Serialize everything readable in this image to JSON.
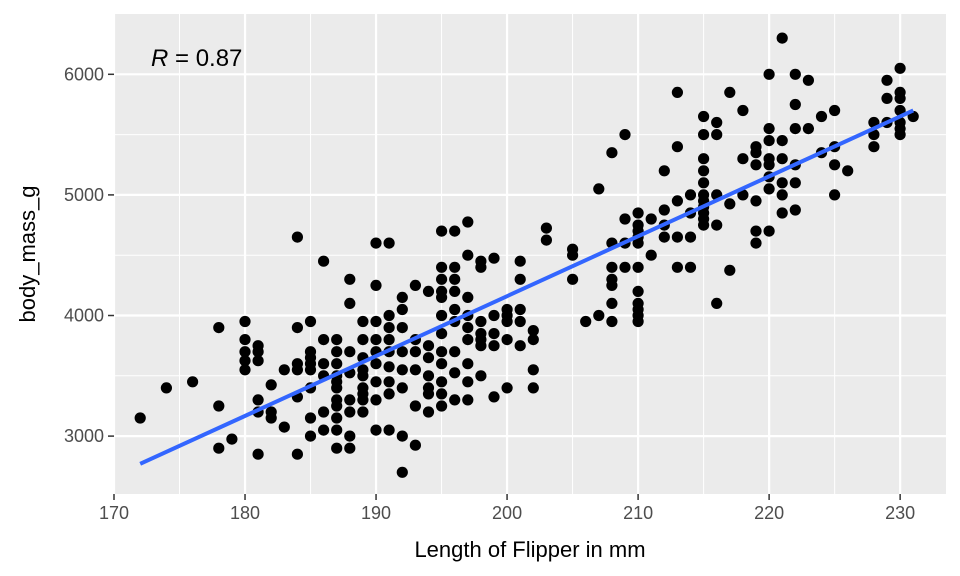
{
  "chart_data": {
    "type": "scatter",
    "title": "",
    "xlabel": "Length of Flipper in mm",
    "ylabel": "body_mass_g",
    "xlim": [
      170,
      233.5
    ],
    "ylim": [
      2520,
      6500
    ],
    "x_ticks": [
      170,
      180,
      190,
      200,
      210,
      220,
      230
    ],
    "y_ticks": [
      3000,
      4000,
      5000,
      6000
    ],
    "grid": true,
    "annotation": {
      "prefix": "R",
      "text": " = 0.87"
    },
    "regression": {
      "x": [
        172,
        231
      ],
      "y": [
        2770,
        5700
      ],
      "color": "#3366FF"
    },
    "point_color": "#000000",
    "background_color": "#EBEBEB",
    "points": [
      [
        172,
        3150
      ],
      [
        174,
        3400
      ],
      [
        176,
        3450
      ],
      [
        178,
        3900
      ],
      [
        178,
        3250
      ],
      [
        178,
        2900
      ],
      [
        179,
        2975
      ],
      [
        180,
        3950
      ],
      [
        180,
        3800
      ],
      [
        180,
        3700
      ],
      [
        180,
        3625
      ],
      [
        180,
        3550
      ],
      [
        181,
        3750
      ],
      [
        181,
        3700
      ],
      [
        181,
        3625
      ],
      [
        181,
        3300
      ],
      [
        181,
        3200
      ],
      [
        181,
        2850
      ],
      [
        182,
        3425
      ],
      [
        182,
        3200
      ],
      [
        182,
        3150
      ],
      [
        183,
        3550
      ],
      [
        183,
        3075
      ],
      [
        184,
        4650
      ],
      [
        184,
        3900
      ],
      [
        184,
        3600
      ],
      [
        184,
        3550
      ],
      [
        184,
        3325
      ],
      [
        184,
        2850
      ],
      [
        185,
        3950
      ],
      [
        185,
        3700
      ],
      [
        185,
        3650
      ],
      [
        185,
        3600
      ],
      [
        185,
        3550
      ],
      [
        185,
        3400
      ],
      [
        185,
        3150
      ],
      [
        185,
        3000
      ],
      [
        186,
        4450
      ],
      [
        186,
        3800
      ],
      [
        186,
        3600
      ],
      [
        186,
        3500
      ],
      [
        186,
        3200
      ],
      [
        186,
        3050
      ],
      [
        187,
        3800
      ],
      [
        187,
        3700
      ],
      [
        187,
        3600
      ],
      [
        187,
        3500
      ],
      [
        187,
        3450
      ],
      [
        187,
        3400
      ],
      [
        187,
        3300
      ],
      [
        187,
        3250
      ],
      [
        187,
        3150
      ],
      [
        187,
        3050
      ],
      [
        187,
        2900
      ],
      [
        188,
        4300
      ],
      [
        188,
        4100
      ],
      [
        188,
        3700
      ],
      [
        188,
        3525
      ],
      [
        188,
        3300
      ],
      [
        188,
        3200
      ],
      [
        188,
        3000
      ],
      [
        188,
        2900
      ],
      [
        189,
        3950
      ],
      [
        189,
        3800
      ],
      [
        189,
        3650
      ],
      [
        189,
        3550
      ],
      [
        189,
        3500
      ],
      [
        189,
        3400
      ],
      [
        189,
        3350
      ],
      [
        189,
        3300
      ],
      [
        189,
        3200
      ],
      [
        190,
        4600
      ],
      [
        190,
        4250
      ],
      [
        190,
        3950
      ],
      [
        190,
        3800
      ],
      [
        190,
        3700
      ],
      [
        190,
        3600
      ],
      [
        190,
        3450
      ],
      [
        190,
        3300
      ],
      [
        190,
        3050
      ],
      [
        191,
        4600
      ],
      [
        191,
        4000
      ],
      [
        191,
        3900
      ],
      [
        191,
        3800
      ],
      [
        191,
        3700
      ],
      [
        191,
        3575
      ],
      [
        191,
        3450
      ],
      [
        191,
        3350
      ],
      [
        191,
        3050
      ],
      [
        192,
        4150
      ],
      [
        192,
        4050
      ],
      [
        192,
        3900
      ],
      [
        192,
        3700
      ],
      [
        192,
        3550
      ],
      [
        192,
        3400
      ],
      [
        192,
        3000
      ],
      [
        192,
        2700
      ],
      [
        193,
        4250
      ],
      [
        193,
        3800
      ],
      [
        193,
        3700
      ],
      [
        193,
        3550
      ],
      [
        193,
        3250
      ],
      [
        193,
        2925
      ],
      [
        194,
        4200
      ],
      [
        194,
        3750
      ],
      [
        194,
        3650
      ],
      [
        194,
        3500
      ],
      [
        194,
        3400
      ],
      [
        194,
        3350
      ],
      [
        194,
        3200
      ],
      [
        195,
        4700
      ],
      [
        195,
        4400
      ],
      [
        195,
        4300
      ],
      [
        195,
        4200
      ],
      [
        195,
        4150
      ],
      [
        195,
        4000
      ],
      [
        195,
        3850
      ],
      [
        195,
        3700
      ],
      [
        195,
        3600
      ],
      [
        195,
        3450
      ],
      [
        195,
        3350
      ],
      [
        195,
        3250
      ],
      [
        196,
        4700
      ],
      [
        196,
        4400
      ],
      [
        196,
        4300
      ],
      [
        196,
        4200
      ],
      [
        196,
        4050
      ],
      [
        196,
        3950
      ],
      [
        196,
        3700
      ],
      [
        196,
        3525
      ],
      [
        196,
        3300
      ],
      [
        197,
        4775
      ],
      [
        197,
        4500
      ],
      [
        197,
        4150
      ],
      [
        197,
        4000
      ],
      [
        197,
        3900
      ],
      [
        197,
        3800
      ],
      [
        197,
        3600
      ],
      [
        197,
        3450
      ],
      [
        197,
        3300
      ],
      [
        198,
        4450
      ],
      [
        198,
        4400
      ],
      [
        198,
        3950
      ],
      [
        198,
        3850
      ],
      [
        198,
        3800
      ],
      [
        198,
        3750
      ],
      [
        198,
        3500
      ],
      [
        199,
        4475
      ],
      [
        199,
        4000
      ],
      [
        199,
        3850
      ],
      [
        199,
        3750
      ],
      [
        199,
        3325
      ],
      [
        200,
        4050
      ],
      [
        200,
        4000
      ],
      [
        200,
        3950
      ],
      [
        200,
        3800
      ],
      [
        200,
        3400
      ],
      [
        201,
        4450
      ],
      [
        201,
        4300
      ],
      [
        201,
        4050
      ],
      [
        201,
        3950
      ],
      [
        201,
        3750
      ],
      [
        202,
        3875
      ],
      [
        202,
        3800
      ],
      [
        202,
        3550
      ],
      [
        202,
        3400
      ],
      [
        203,
        4725
      ],
      [
        203,
        4625
      ],
      [
        205,
        4550
      ],
      [
        205,
        4500
      ],
      [
        205,
        4300
      ],
      [
        206,
        3950
      ],
      [
        207,
        5050
      ],
      [
        207,
        4000
      ],
      [
        208,
        5350
      ],
      [
        208,
        4600
      ],
      [
        208,
        4400
      ],
      [
        208,
        4300
      ],
      [
        208,
        4250
      ],
      [
        208,
        4100
      ],
      [
        208,
        3950
      ],
      [
        209,
        5500
      ],
      [
        209,
        4800
      ],
      [
        209,
        4600
      ],
      [
        209,
        4400
      ],
      [
        210,
        4850
      ],
      [
        210,
        4750
      ],
      [
        210,
        4700
      ],
      [
        210,
        4650
      ],
      [
        210,
        4600
      ],
      [
        210,
        4400
      ],
      [
        210,
        4200
      ],
      [
        210,
        4100
      ],
      [
        210,
        4050
      ],
      [
        210,
        4000
      ],
      [
        210,
        3950
      ],
      [
        211,
        4800
      ],
      [
        211,
        4500
      ],
      [
        212,
        5200
      ],
      [
        212,
        4875
      ],
      [
        212,
        4750
      ],
      [
        212,
        4650
      ],
      [
        213,
        5850
      ],
      [
        213,
        5400
      ],
      [
        213,
        4950
      ],
      [
        213,
        4650
      ],
      [
        213,
        4400
      ],
      [
        214,
        5000
      ],
      [
        214,
        4850
      ],
      [
        214,
        4650
      ],
      [
        214,
        4400
      ],
      [
        215,
        5650
      ],
      [
        215,
        5500
      ],
      [
        215,
        5300
      ],
      [
        215,
        5200
      ],
      [
        215,
        5100
      ],
      [
        215,
        5000
      ],
      [
        215,
        4950
      ],
      [
        215,
        4900
      ],
      [
        215,
        4850
      ],
      [
        215,
        4800
      ],
      [
        215,
        4750
      ],
      [
        216,
        5600
      ],
      [
        216,
        5500
      ],
      [
        216,
        5000
      ],
      [
        216,
        4750
      ],
      [
        216,
        4100
      ],
      [
        217,
        5850
      ],
      [
        217,
        4925
      ],
      [
        217,
        4375
      ],
      [
        218,
        5700
      ],
      [
        218,
        5300
      ],
      [
        218,
        5000
      ],
      [
        219,
        5400
      ],
      [
        219,
        5350
      ],
      [
        219,
        5250
      ],
      [
        219,
        4950
      ],
      [
        219,
        4700
      ],
      [
        219,
        4600
      ],
      [
        220,
        6000
      ],
      [
        220,
        5550
      ],
      [
        220,
        5450
      ],
      [
        220,
        5300
      ],
      [
        220,
        5250
      ],
      [
        220,
        5150
      ],
      [
        220,
        5050
      ],
      [
        220,
        4700
      ],
      [
        221,
        6300
      ],
      [
        221,
        5450
      ],
      [
        221,
        5300
      ],
      [
        221,
        5100
      ],
      [
        221,
        5000
      ],
      [
        221,
        4850
      ],
      [
        222,
        6000
      ],
      [
        222,
        5750
      ],
      [
        222,
        5550
      ],
      [
        222,
        5250
      ],
      [
        222,
        5100
      ],
      [
        222,
        4875
      ],
      [
        223,
        5950
      ],
      [
        223,
        5550
      ],
      [
        224,
        5650
      ],
      [
        224,
        5350
      ],
      [
        225,
        5700
      ],
      [
        225,
        5400
      ],
      [
        225,
        5250
      ],
      [
        225,
        5000
      ],
      [
        226,
        5200
      ],
      [
        228,
        5600
      ],
      [
        228,
        5500
      ],
      [
        228,
        5400
      ],
      [
        229,
        5950
      ],
      [
        229,
        5800
      ],
      [
        229,
        5600
      ],
      [
        230,
        6050
      ],
      [
        230,
        5850
      ],
      [
        230,
        5800
      ],
      [
        230,
        5700
      ],
      [
        230,
        5600
      ],
      [
        230,
        5550
      ],
      [
        230,
        5500
      ],
      [
        231,
        5650
      ]
    ]
  }
}
